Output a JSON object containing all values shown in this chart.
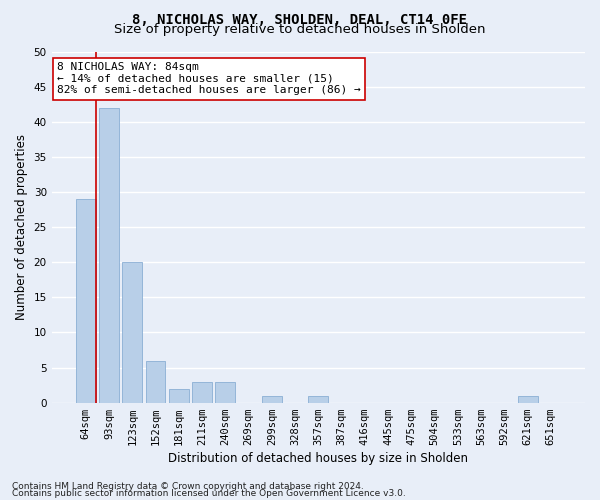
{
  "title": "8, NICHOLAS WAY, SHOLDEN, DEAL, CT14 0FE",
  "subtitle": "Size of property relative to detached houses in Sholden",
  "xlabel": "Distribution of detached houses by size in Sholden",
  "ylabel": "Number of detached properties",
  "footnote1": "Contains HM Land Registry data © Crown copyright and database right 2024.",
  "footnote2": "Contains public sector information licensed under the Open Government Licence v3.0.",
  "categories": [
    "64sqm",
    "93sqm",
    "123sqm",
    "152sqm",
    "181sqm",
    "211sqm",
    "240sqm",
    "269sqm",
    "299sqm",
    "328sqm",
    "357sqm",
    "387sqm",
    "416sqm",
    "445sqm",
    "475sqm",
    "504sqm",
    "533sqm",
    "563sqm",
    "592sqm",
    "621sqm",
    "651sqm"
  ],
  "values": [
    29,
    42,
    20,
    6,
    2,
    3,
    3,
    0,
    1,
    0,
    1,
    0,
    0,
    0,
    0,
    0,
    0,
    0,
    0,
    1,
    0
  ],
  "bar_color": "#b8cfe8",
  "bar_edge_color": "#8aafd4",
  "background_color": "#e8eef8",
  "grid_color": "#ffffff",
  "vline_color": "#cc0000",
  "vline_pos": 0.43,
  "annotation_text": "8 NICHOLAS WAY: 84sqm\n← 14% of detached houses are smaller (15)\n82% of semi-detached houses are larger (86) →",
  "annotation_box_facecolor": "#ffffff",
  "annotation_box_edgecolor": "#cc0000",
  "ylim": [
    0,
    50
  ],
  "yticks": [
    0,
    5,
    10,
    15,
    20,
    25,
    30,
    35,
    40,
    45,
    50
  ],
  "title_fontsize": 10,
  "subtitle_fontsize": 9.5,
  "axis_label_fontsize": 8.5,
  "tick_fontsize": 7.5,
  "annotation_fontsize": 8,
  "footnote_fontsize": 6.5
}
